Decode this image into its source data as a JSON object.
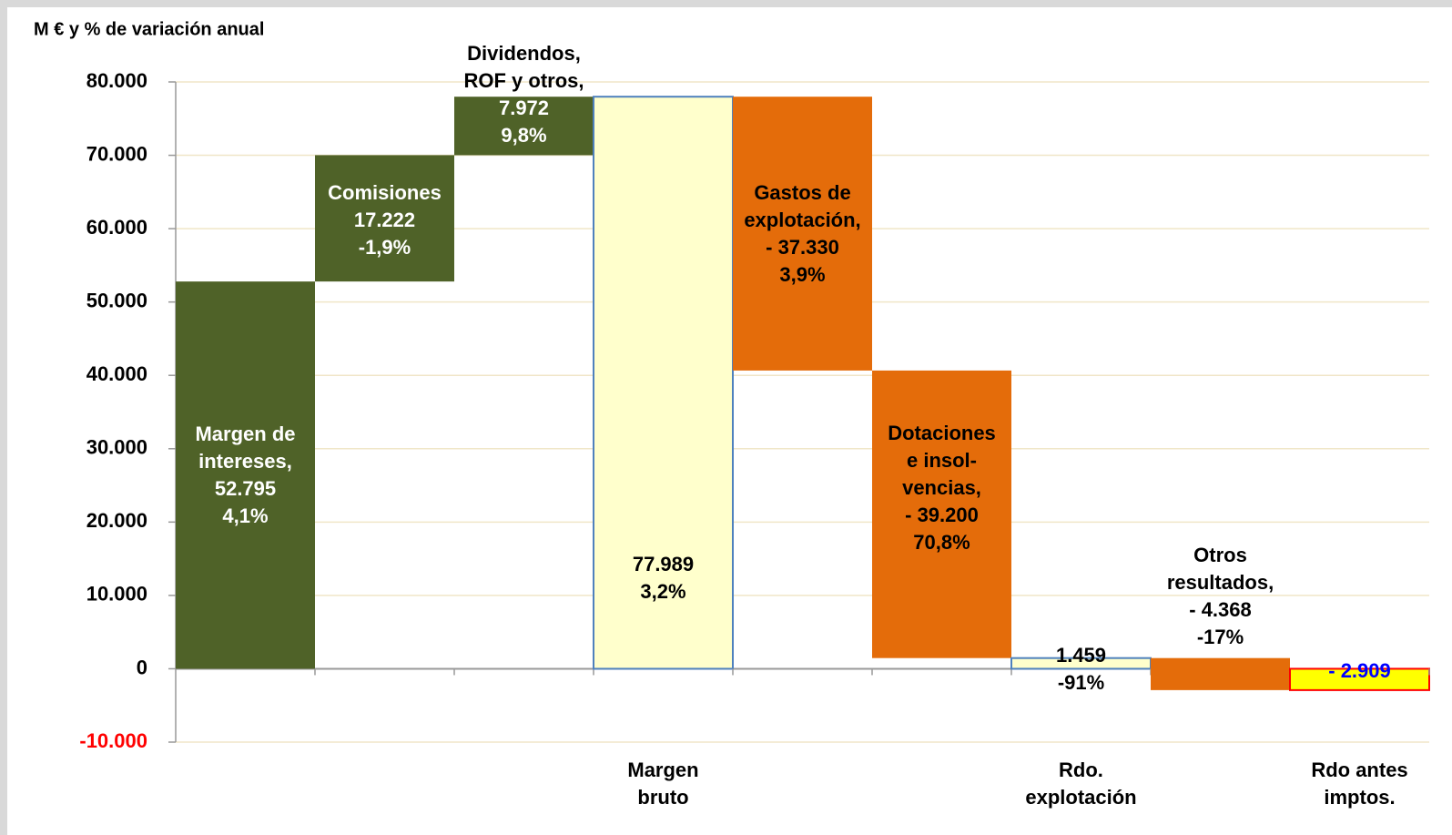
{
  "chart_data": {
    "type": "waterfall",
    "title": "M € y % de variación anual",
    "categories": [
      [
        "Margen de",
        "intereses,"
      ],
      [
        "Comisiones"
      ],
      [
        "Dividendos,",
        "ROF y otros,"
      ],
      [
        "Margen",
        "bruto"
      ],
      [
        "Gastos de",
        "explotación,"
      ],
      [
        "Dotaciones",
        "e insol-",
        "vencias,"
      ],
      [
        "Rdo.",
        "explotación"
      ],
      [
        "Otros",
        "resultados,"
      ],
      [
        "Rdo antes",
        "imptos."
      ]
    ],
    "kinds": [
      "delta",
      "delta",
      "delta",
      "total",
      "delta",
      "delta",
      "total",
      "delta",
      "total"
    ],
    "values": [
      52795,
      17222,
      7972,
      77989,
      -37330,
      -39200,
      1459,
      -4368,
      -2909
    ],
    "value_labels": [
      "52.795",
      "17.222",
      "7.972",
      "77.989",
      "- 37.330",
      "- 39.200",
      "1.459",
      "- 4.368",
      "- 2.909"
    ],
    "changes": [
      "4,1%",
      "-1,9%",
      "9,8%",
      "3,2%",
      "3,9%",
      "70,8%",
      "-91%",
      "-17%",
      null
    ],
    "colors": [
      "#4f6228",
      "#4f6228",
      "#4f6228",
      "#ffffcc",
      "#e46c0a",
      "#e46c0a",
      "#ffffcc",
      "#e46c0a",
      "#ffff00"
    ],
    "edge_colors": [
      null,
      null,
      null,
      "#4f81bd",
      null,
      null,
      "#4f81bd",
      null,
      "#ff0000"
    ],
    "label_colors": [
      "#ffffff",
      "#ffffff",
      "#ffffff",
      "#000000",
      "#000000",
      "#000000",
      "#000000",
      "#000000",
      "#0000ff"
    ],
    "ylim": [
      -10000,
      80000
    ],
    "yticks": [
      {
        "value": -10000,
        "label": "-10.000"
      },
      0,
      {
        "value": 10000,
        "label": "10.000"
      },
      {
        "value": 20000,
        "label": "20.000"
      },
      {
        "value": 30000,
        "label": "30.000"
      },
      {
        "value": 40000,
        "label": "40.000"
      },
      {
        "value": 50000,
        "label": "50.000"
      },
      {
        "value": 60000,
        "label": "60.000"
      },
      {
        "value": 70000,
        "label": "70.000"
      },
      {
        "value": 80000,
        "label": "80.000"
      }
    ],
    "grid": true
  }
}
